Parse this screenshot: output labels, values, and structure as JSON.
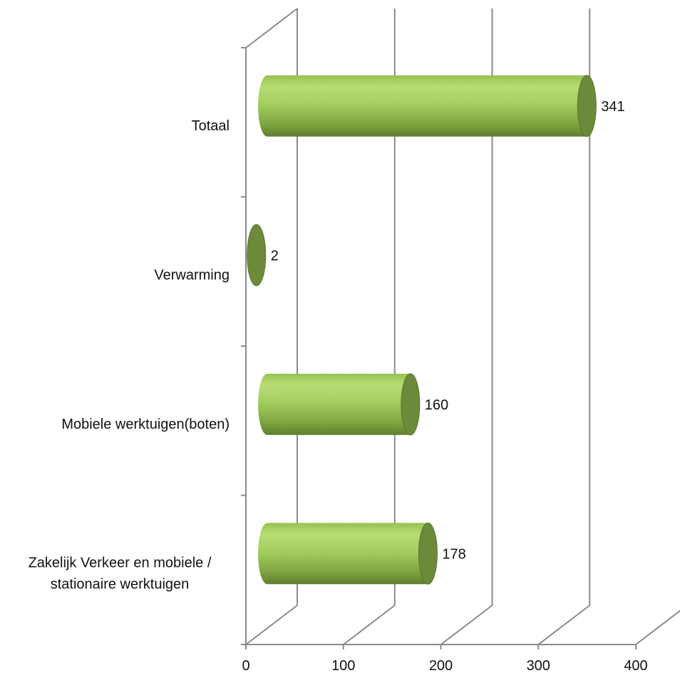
{
  "chart_data": {
    "type": "bar",
    "orientation": "horizontal",
    "style": "3d-cylinder",
    "categories": [
      "Totaal",
      "Verwarming",
      "Mobiele werktuigen(boten)",
      "Zakelijk Verkeer en mobiele / stationaire werktuigen"
    ],
    "category_lines": [
      [
        "Totaal"
      ],
      [
        "Verwarming"
      ],
      [
        "Mobiele werktuigen(boten)"
      ],
      [
        "Zakelijk Verkeer en mobiele /",
        "stationaire werktuigen"
      ]
    ],
    "values": [
      341,
      2,
      160,
      178
    ],
    "value_labels": [
      "341",
      "2",
      "160",
      "178"
    ],
    "xlim": [
      0,
      400
    ],
    "x_ticks": [
      "0",
      "100",
      "200",
      "300",
      "400"
    ],
    "title": "",
    "xlabel": "",
    "ylabel": "",
    "grid": true,
    "legend": "none",
    "colors": {
      "bar_light": "#a9d26a",
      "bar_mid": "#8cb84a",
      "bar_dark": "#5f7f2e",
      "cap": "#6d8a3a",
      "grid": "#8a8a8a"
    }
  }
}
